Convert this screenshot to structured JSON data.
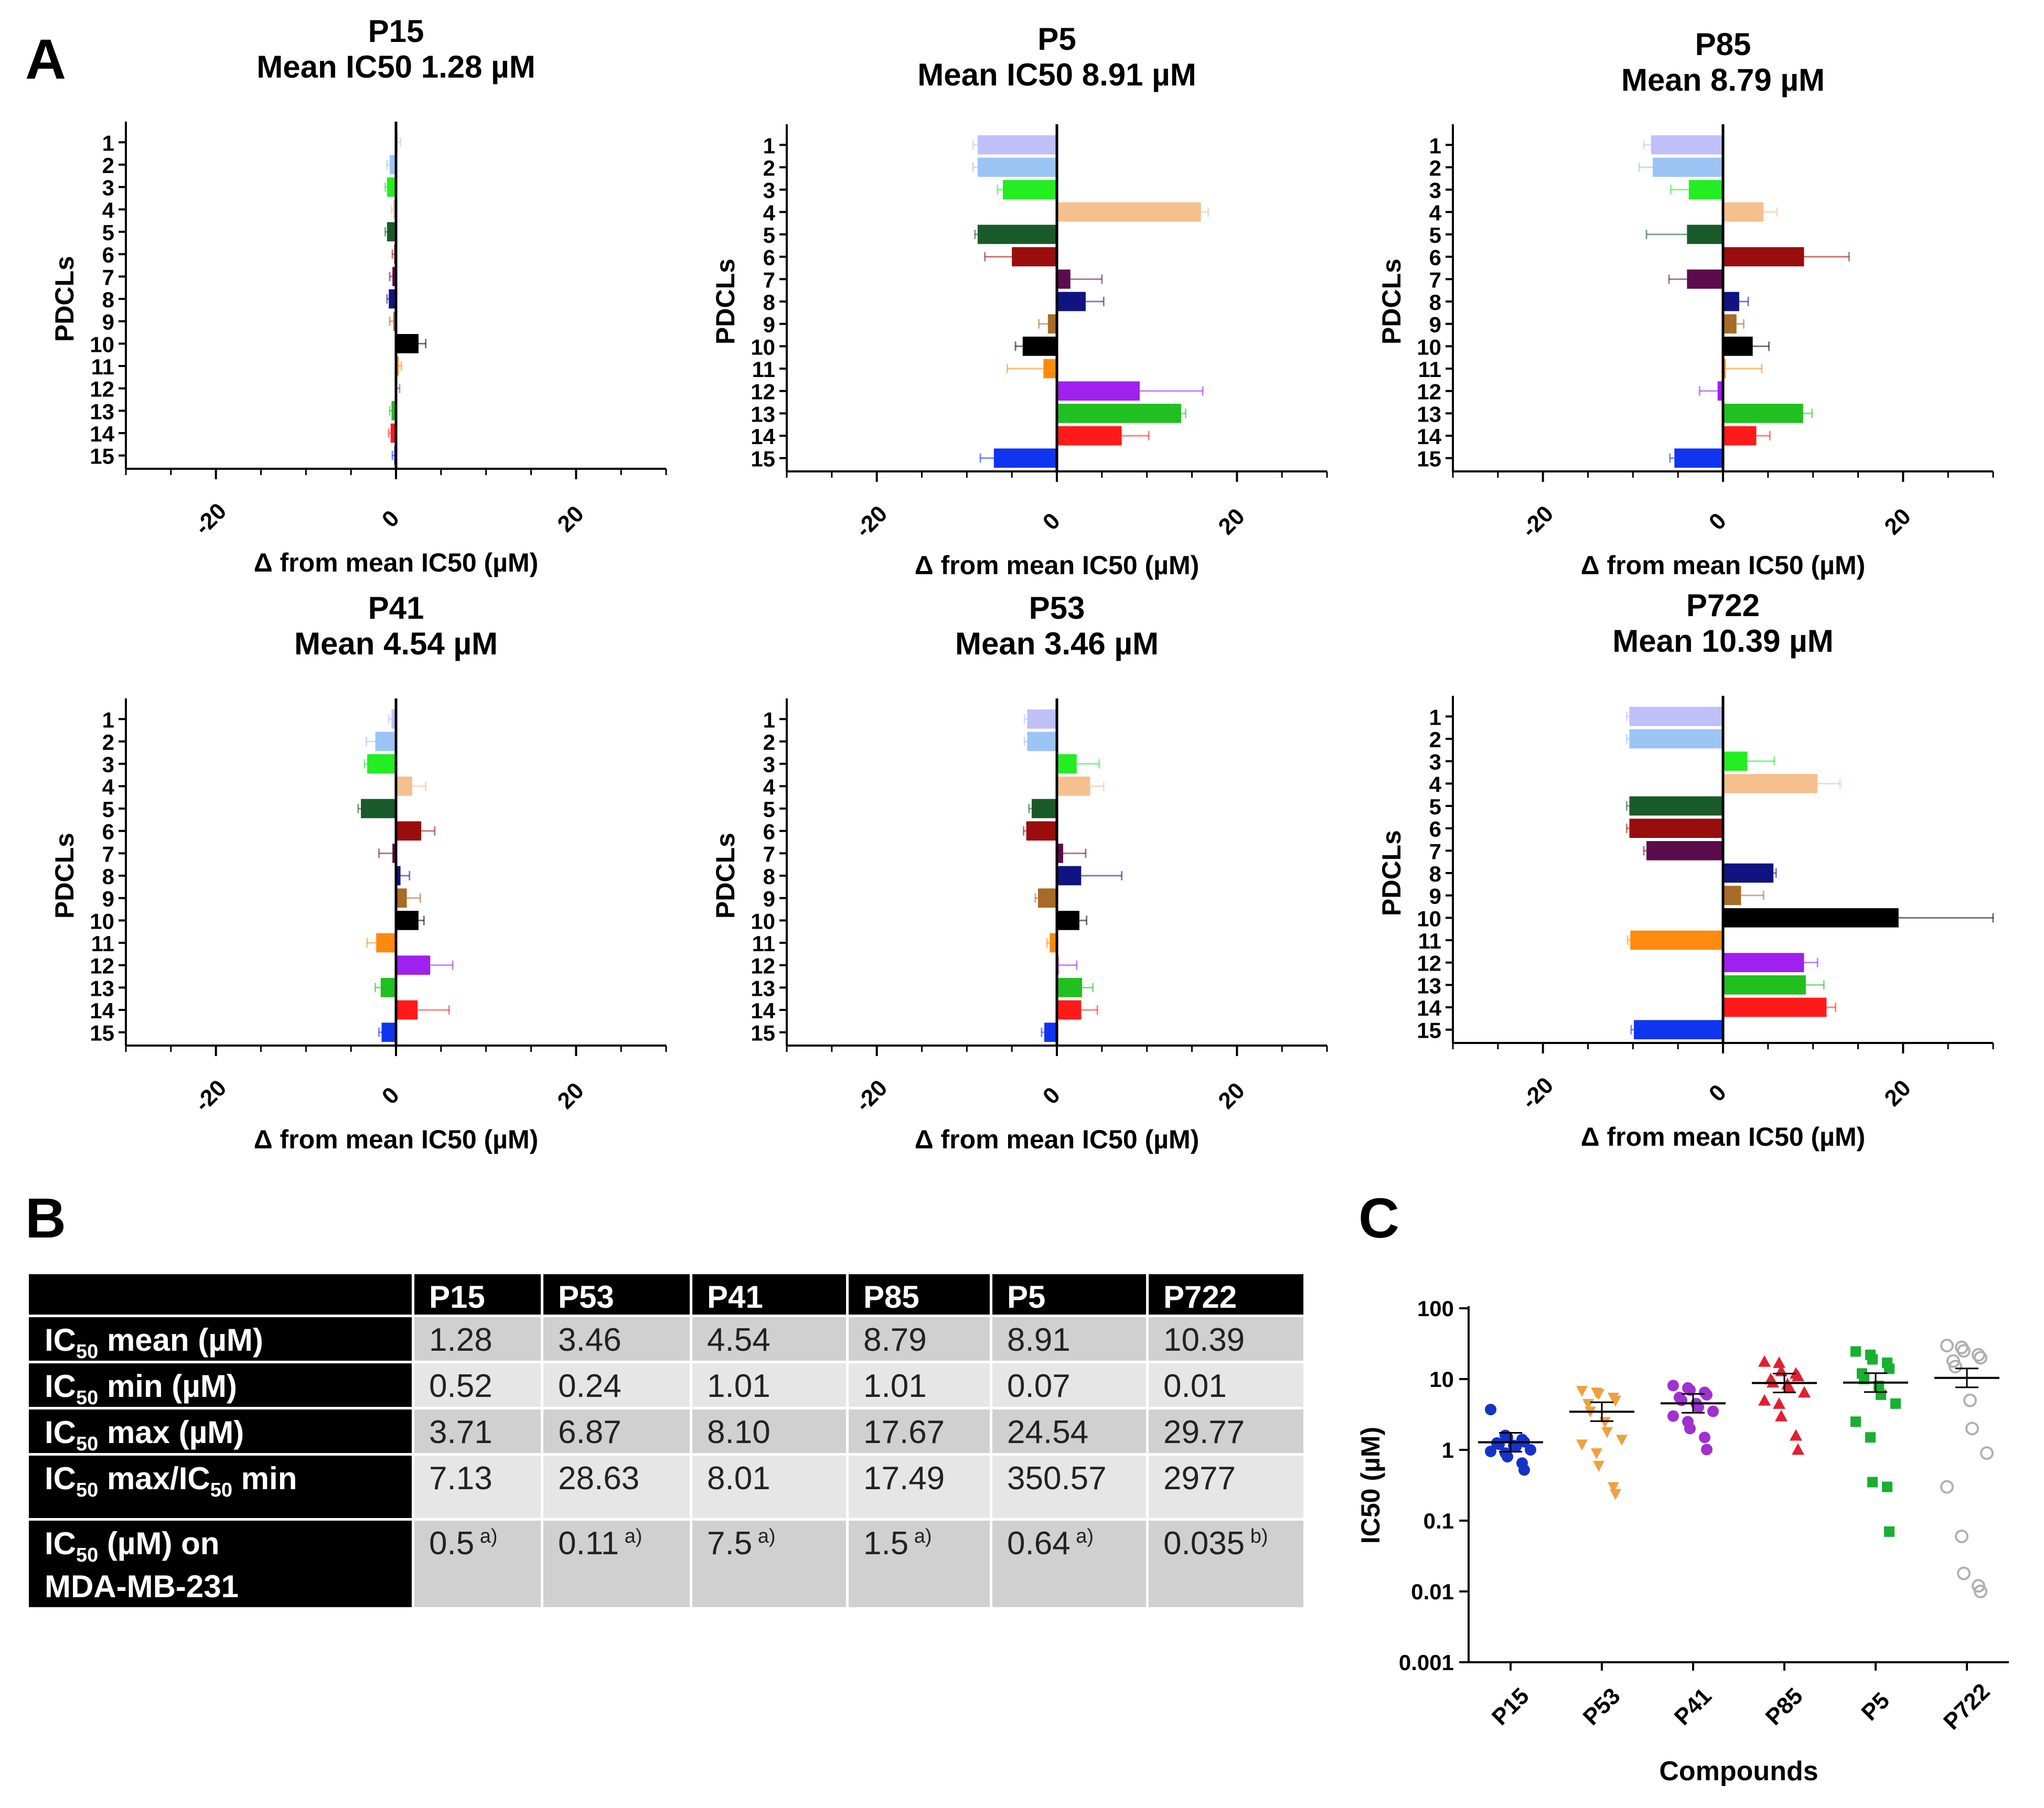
{
  "panel_labels": {
    "a": "A",
    "b": "B",
    "c": "C"
  },
  "colors": {
    "pdcl": [
      "#c0c0f8",
      "#9cc4f4",
      "#22ee22",
      "#f5c08e",
      "#1a5a2a",
      "#9a0d0d",
      "#5c0c4c",
      "#101480",
      "#a86a28",
      "#000000",
      "#ff8a10",
      "#a020f0",
      "#20c020",
      "#ff1a1a",
      "#1035f0"
    ],
    "scatter": [
      "#1532c8",
      "#f0a040",
      "#a030d0",
      "#e02030",
      "#18b030",
      "#b0b0b0"
    ],
    "header_bg": "#000000",
    "cell_dark": "#d0d0d0",
    "cell_light": "#e6e6e6"
  },
  "chart_data": [
    {
      "type": "bar",
      "orientation": "horizontal",
      "title": "P15",
      "subtitle": "Mean IC50 1.28 µM",
      "xlabel": "Δ from mean IC50 (µM)",
      "ylabel": "PDCLs",
      "xlim": [
        -30,
        30
      ],
      "xticks": [
        "-20",
        "0",
        "20"
      ],
      "categories": [
        "1",
        "2",
        "3",
        "4",
        "5",
        "6",
        "7",
        "8",
        "9",
        "10",
        "11",
        "12",
        "13",
        "14",
        "15"
      ],
      "values": [
        0.2,
        -0.7,
        -1.0,
        -0.3,
        -1.0,
        -0.2,
        -0.4,
        -0.8,
        -0.3,
        2.5,
        0.3,
        0.1,
        -0.5,
        -0.6,
        -0.2
      ],
      "errors": [
        0.3,
        0.3,
        0.2,
        0.2,
        0.2,
        0.2,
        0.3,
        0.2,
        0.4,
        0.8,
        0.3,
        0.3,
        0.2,
        0.2,
        0.2
      ]
    },
    {
      "type": "bar",
      "orientation": "horizontal",
      "title": "P5",
      "subtitle": "Mean IC50 8.91 µM",
      "xlabel": "Δ from mean IC50 (µM)",
      "ylabel": "PDCLs",
      "xlim": [
        -30,
        30
      ],
      "xticks": [
        "-20",
        "0",
        "20"
      ],
      "categories": [
        "1",
        "2",
        "3",
        "4",
        "5",
        "6",
        "7",
        "8",
        "9",
        "10",
        "11",
        "12",
        "13",
        "14",
        "15"
      ],
      "values": [
        -8.8,
        -8.8,
        -6.0,
        16.0,
        -8.8,
        -5.0,
        1.5,
        3.2,
        -1.0,
        -3.8,
        -1.5,
        9.2,
        13.8,
        7.2,
        -7.0
      ],
      "errors": [
        0.5,
        0.5,
        0.6,
        0.8,
        0.3,
        3.0,
        3.5,
        2.0,
        1.0,
        0.8,
        4.0,
        7.0,
        0.5,
        3.0,
        1.5
      ]
    },
    {
      "type": "bar",
      "orientation": "horizontal",
      "title": "P85",
      "subtitle": "Mean 8.79 µM",
      "xlabel": "Δ from mean IC50 (µM)",
      "ylabel": "PDCLs",
      "xlim": [
        -30,
        30
      ],
      "xticks": [
        "-20",
        "0",
        "20"
      ],
      "categories": [
        "1",
        "2",
        "3",
        "4",
        "5",
        "6",
        "7",
        "8",
        "9",
        "10",
        "11",
        "12",
        "13",
        "14",
        "15"
      ],
      "values": [
        -8.0,
        -7.8,
        -3.8,
        4.5,
        -4.0,
        9.0,
        -4.0,
        1.8,
        1.5,
        3.3,
        0.3,
        -0.6,
        8.9,
        3.7,
        -5.4
      ],
      "errors": [
        0.8,
        1.5,
        2.0,
        1.5,
        4.5,
        5.0,
        2.0,
        1.0,
        0.8,
        1.8,
        4.0,
        2.0,
        1.0,
        1.5,
        0.5
      ]
    },
    {
      "type": "bar",
      "orientation": "horizontal",
      "title": "P41",
      "subtitle": "Mean 4.54 µM",
      "xlabel": "Δ from mean IC50 (µM)",
      "ylabel": "PDCLs",
      "xlim": [
        -30,
        30
      ],
      "xticks": [
        "-20",
        "0",
        "20"
      ],
      "categories": [
        "1",
        "2",
        "3",
        "4",
        "5",
        "6",
        "7",
        "8",
        "9",
        "10",
        "11",
        "12",
        "13",
        "14",
        "15"
      ],
      "values": [
        -0.5,
        -2.3,
        -3.2,
        1.8,
        -3.9,
        2.8,
        -0.4,
        0.5,
        1.2,
        2.5,
        -2.2,
        3.8,
        -1.7,
        2.4,
        -1.6
      ],
      "errors": [
        0.3,
        1.0,
        0.3,
        1.5,
        0.3,
        1.5,
        1.5,
        1.0,
        1.5,
        0.6,
        1.0,
        2.5,
        0.6,
        3.5,
        0.3
      ]
    },
    {
      "type": "bar",
      "orientation": "horizontal",
      "title": "P53",
      "subtitle": "Mean 3.46 µM",
      "xlabel": "Δ from mean IC50 (µM)",
      "ylabel": "PDCLs",
      "xlim": [
        -30,
        30
      ],
      "xticks": [
        "-20",
        "0",
        "20"
      ],
      "categories": [
        "1",
        "2",
        "3",
        "4",
        "5",
        "6",
        "7",
        "8",
        "9",
        "10",
        "11",
        "12",
        "13",
        "14",
        "15"
      ],
      "values": [
        -3.3,
        -3.3,
        2.2,
        3.7,
        -2.8,
        -3.4,
        0.7,
        2.7,
        -2.1,
        2.5,
        -0.8,
        0.2,
        2.8,
        2.7,
        -1.4
      ],
      "errors": [
        0.3,
        0.3,
        2.5,
        1.5,
        0.3,
        0.3,
        2.5,
        4.5,
        0.3,
        0.8,
        0.3,
        2.0,
        1.2,
        1.8,
        0.3
      ]
    },
    {
      "type": "bar",
      "orientation": "horizontal",
      "title": "P722",
      "subtitle": "Mean 10.39 µM",
      "xlabel": "Δ from mean IC50 (µM)",
      "ylabel": "PDCLs",
      "xlim": [
        -30,
        30
      ],
      "xticks": [
        "-20",
        "0",
        "20"
      ],
      "categories": [
        "1",
        "2",
        "3",
        "4",
        "5",
        "6",
        "7",
        "8",
        "9",
        "10",
        "11",
        "12",
        "13",
        "14",
        "15"
      ],
      "values": [
        -10.4,
        -10.4,
        2.7,
        10.5,
        -10.4,
        -10.4,
        -8.5,
        5.6,
        2.0,
        19.5,
        -10.3,
        9.0,
        9.2,
        11.5,
        -9.9
      ],
      "errors": [
        0.3,
        0.3,
        3.0,
        2.5,
        0.3,
        0.3,
        0.3,
        0.3,
        2.5,
        10.5,
        0.3,
        1.5,
        2.0,
        1.0,
        0.3
      ]
    },
    {
      "type": "scatter",
      "xlabel": "Compounds",
      "ylabel": "IC50 (µM)",
      "yscale": "log",
      "ylim": [
        0.001,
        100
      ],
      "yticks": [
        "0.001",
        "0.01",
        "0.1",
        "1",
        "10",
        "100"
      ],
      "categories": [
        "P15",
        "P53",
        "P41",
        "P85",
        "P5",
        "P722"
      ],
      "means": [
        1.28,
        3.46,
        4.54,
        8.79,
        8.91,
        10.39
      ],
      "series": [
        {
          "name": "P15",
          "values": [
            3.71,
            1.6,
            1.5,
            1.4,
            1.3,
            1.25,
            1.2,
            1.15,
            1.1,
            1.0,
            0.95,
            0.9,
            0.8,
            0.65,
            0.52
          ]
        },
        {
          "name": "P53",
          "values": [
            6.87,
            6.5,
            6.2,
            5.5,
            5.0,
            4.5,
            3.5,
            2.5,
            1.8,
            1.4,
            1.2,
            0.9,
            0.6,
            0.3,
            0.24
          ]
        },
        {
          "name": "P41",
          "values": [
            8.1,
            7.5,
            7.0,
            6.5,
            6.0,
            5.5,
            5.0,
            4.5,
            4.0,
            3.5,
            3.0,
            2.5,
            2.0,
            1.5,
            1.01
          ]
        },
        {
          "name": "P85",
          "values": [
            17.67,
            17.0,
            13.0,
            12.0,
            11.0,
            10.0,
            9.0,
            8.5,
            7.5,
            6.5,
            5.0,
            4.5,
            3.0,
            1.6,
            1.01
          ]
        },
        {
          "name": "P5",
          "values": [
            24.54,
            22.0,
            19.0,
            17.0,
            14.0,
            12.0,
            10.0,
            8.0,
            6.0,
            4.5,
            2.5,
            1.5,
            0.35,
            0.3,
            0.07
          ]
        },
        {
          "name": "P722",
          "values": [
            29.77,
            28.0,
            25.0,
            22.0,
            20.0,
            18.0,
            15.0,
            5.0,
            2.0,
            0.9,
            0.3,
            0.06,
            0.018,
            0.012,
            0.01
          ]
        }
      ]
    }
  ],
  "table": {
    "headers": [
      "P15",
      "P53",
      "P41",
      "P85",
      "P5",
      "P722"
    ],
    "rows": [
      {
        "label_main": "IC",
        "label_sub": "50",
        "label_rest": " mean (µM)",
        "values": [
          "1.28",
          "3.46",
          "4.54",
          "8.79",
          "8.91",
          "10.39"
        ]
      },
      {
        "label_main": "IC",
        "label_sub": "50",
        "label_rest": " min (µM)",
        "values": [
          "0.52",
          "0.24",
          "1.01",
          "1.01",
          "0.07",
          "0.01"
        ]
      },
      {
        "label_main": "IC",
        "label_sub": "50",
        "label_rest": " max (µM)",
        "values": [
          "3.71",
          "6.87",
          "8.10",
          "17.67",
          "24.54",
          "29.77"
        ]
      },
      {
        "label_main": "IC",
        "label_sub": "50",
        "label_rest": " max/IC",
        "label_sub2": "50",
        "label_rest2": " min",
        "values": [
          "7.13",
          "28.63",
          "8.01",
          "17.49",
          "350.57",
          "2977"
        ]
      },
      {
        "label_main": "IC",
        "label_sub": "50",
        "label_rest": " (µM) on",
        "label_line2": "MDA-MB-231",
        "values": [
          "0.5",
          "0.11",
          "7.5",
          "1.5",
          "0.64",
          "0.035"
        ],
        "notes": [
          "a)",
          "a)",
          "a)",
          "a)",
          "a)",
          "b)"
        ]
      }
    ]
  }
}
